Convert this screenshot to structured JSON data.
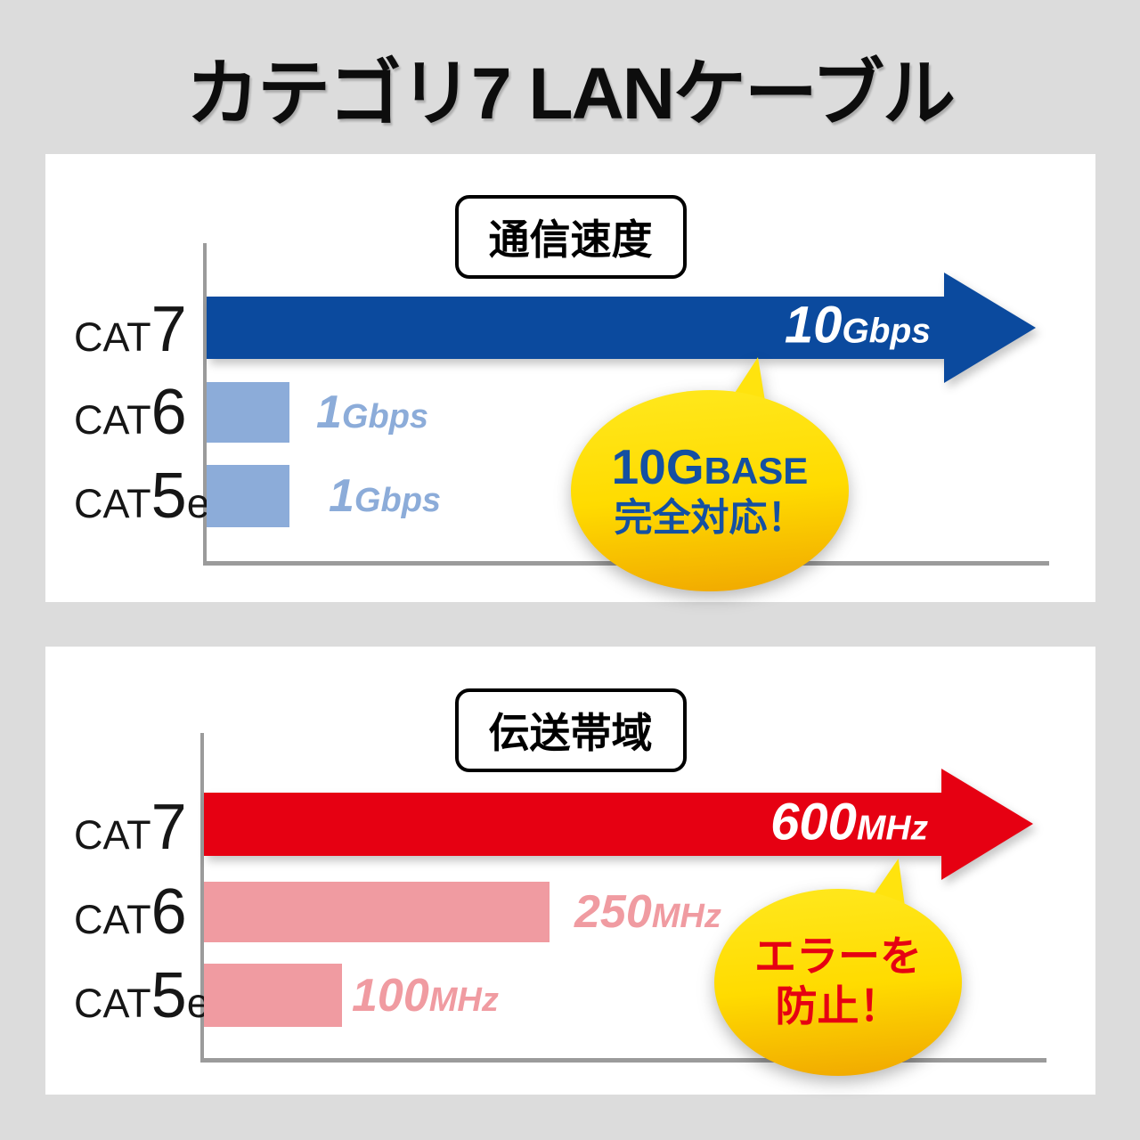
{
  "title": "カテゴリ7 LANケーブル",
  "colors": {
    "background": "#dcdcdc",
    "panel": "#ffffff",
    "axis": "#9b9b9b",
    "speed_main": "#0b4a9e",
    "speed_sub": "#8cacd9",
    "band_main": "#e60012",
    "band_sub": "#f09ba1",
    "bubble_yellow": "#ffdb00",
    "bubble_text_blue": "#1450a2",
    "bubble_text_red": "#e60012"
  },
  "panels": [
    {
      "header": "通信速度",
      "rows": [
        {
          "cat": "CAT",
          "num": "7",
          "suffix": "",
          "value_big": "10",
          "value_unit": "Gbps"
        },
        {
          "cat": "CAT",
          "num": "6",
          "suffix": "",
          "value_big": "1",
          "value_unit": "Gbps"
        },
        {
          "cat": "CAT",
          "num": "5",
          "suffix": "e",
          "value_big": "1",
          "value_unit": "Gbps"
        }
      ],
      "bubble": {
        "line1_big": "10G",
        "line1_small": "BASE",
        "line2": "完全対応！"
      }
    },
    {
      "header": "伝送帯域",
      "rows": [
        {
          "cat": "CAT",
          "num": "7",
          "suffix": "",
          "value_big": "600",
          "value_unit": "MHz"
        },
        {
          "cat": "CAT",
          "num": "6",
          "suffix": "",
          "value_big": "250",
          "value_unit": "MHz"
        },
        {
          "cat": "CAT",
          "num": "5",
          "suffix": "e",
          "value_big": "100",
          "value_unit": "MHz"
        }
      ],
      "bubble": {
        "line1": "エラーを",
        "line2": "防止！"
      }
    }
  ],
  "chart_data": [
    {
      "type": "bar",
      "orientation": "horizontal",
      "title": "通信速度",
      "categories": [
        "CAT7",
        "CAT6",
        "CAT5e"
      ],
      "values": [
        10,
        1,
        1
      ],
      "unit": "Gbps",
      "value_labels": [
        "10Gbps",
        "1Gbps",
        "1Gbps"
      ],
      "xlim": [
        0,
        10
      ],
      "grid": false,
      "legend": "none",
      "annotation": "10GBASE 完全対応！",
      "note": "CAT7 drawn as arrow highlight"
    },
    {
      "type": "bar",
      "orientation": "horizontal",
      "title": "伝送帯域",
      "categories": [
        "CAT7",
        "CAT6",
        "CAT5e"
      ],
      "values": [
        600,
        250,
        100
      ],
      "unit": "MHz",
      "value_labels": [
        "600MHz",
        "250MHz",
        "100MHz"
      ],
      "xlim": [
        0,
        600
      ],
      "grid": false,
      "legend": "none",
      "annotation": "エラーを 防止！",
      "note": "CAT7 drawn as arrow highlight"
    }
  ]
}
